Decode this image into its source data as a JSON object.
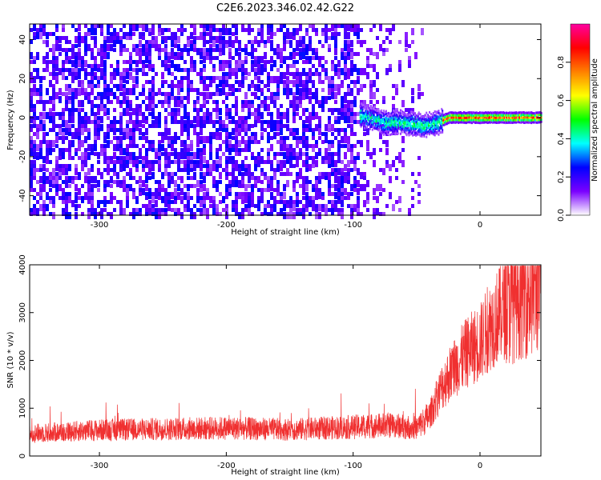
{
  "title": "C2E6.2023.346.02.42.G22",
  "chart_data": [
    {
      "type": "heatmap",
      "title": "C2E6.2023.346.02.42.G22",
      "xlabel": "Height of straight line (km)",
      "ylabel": "Frequency (Hz)",
      "xlim": [
        -355,
        48
      ],
      "ylim": [
        -50,
        48
      ],
      "x_ticks": [
        -300,
        -200,
        -100,
        0
      ],
      "y_ticks": [
        -40,
        -20,
        0,
        20,
        40
      ],
      "colorbar": {
        "label": "Normalized spectral amplitude",
        "range": [
          0,
          1
        ],
        "ticks": [
          0.0,
          0.2,
          0.4,
          0.6,
          0.8
        ],
        "tick_labels": [
          "0.0",
          "0.2",
          "0.4",
          "0.6",
          "0.8"
        ],
        "colors": [
          "#ffffff",
          "#7a00ff",
          "#0000ff",
          "#00ffff",
          "#00ff00",
          "#ffff00",
          "#ff8000",
          "#ff0000",
          "#ff00a0"
        ]
      },
      "signal_line": {
        "x_start": -95,
        "x_end": 48,
        "freq_hz": [
          [
            -95,
            1
          ],
          [
            -85,
            0
          ],
          [
            -75,
            -3
          ],
          [
            -65,
            -2
          ],
          [
            -55,
            -3
          ],
          [
            -45,
            -4
          ],
          [
            -35,
            -3
          ],
          [
            -25,
            0
          ],
          [
            -15,
            0
          ],
          [
            0,
            0
          ],
          [
            48,
            0
          ]
        ],
        "peak_amplitude": 0.95
      },
      "noise_region": {
        "x_start": -355,
        "x_end": -90,
        "amplitude": "0.2-0.3"
      }
    },
    {
      "type": "line",
      "xlabel": "Height of straight line (km)",
      "ylabel": "SNR (10 * v/v)",
      "xlim": [
        -355,
        48
      ],
      "ylim": [
        0,
        4000
      ],
      "x_ticks": [
        -300,
        -200,
        -100,
        0
      ],
      "y_ticks": [
        0,
        1000,
        2000,
        3000,
        4000
      ],
      "color": "#f03030",
      "x": [
        -355,
        -300,
        -250,
        -200,
        -150,
        -100,
        -70,
        -50,
        -40,
        -30,
        -20,
        -10,
        0,
        10,
        20,
        30,
        40,
        48
      ],
      "y": [
        450,
        520,
        540,
        560,
        530,
        580,
        620,
        560,
        800,
        1400,
        1800,
        2100,
        2300,
        2700,
        3000,
        3300,
        3400,
        3500
      ]
    }
  ]
}
